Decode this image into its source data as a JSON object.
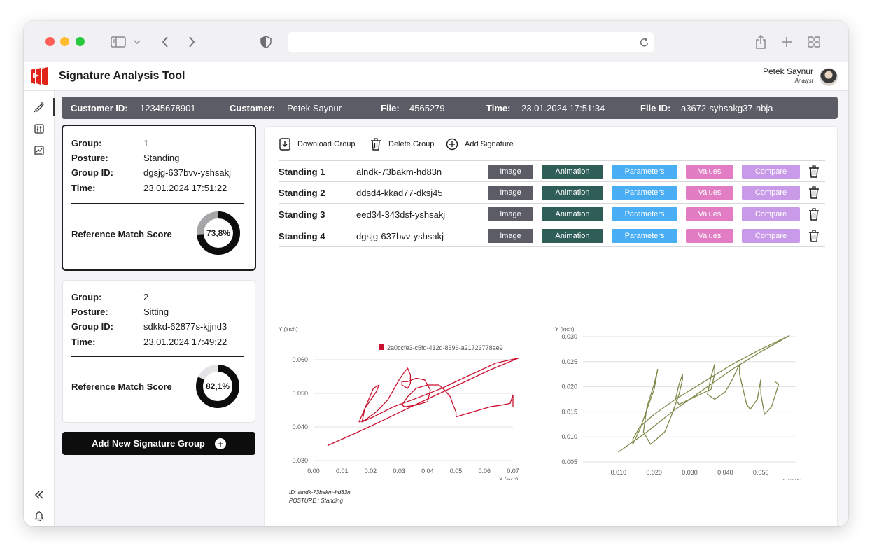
{
  "browser": {
    "url": "",
    "icons": [
      "sidebar-icon",
      "chevron-down-icon",
      "back-icon",
      "forward-icon",
      "shield-icon",
      "reload-icon",
      "share-icon",
      "new-tab-icon",
      "tabs-overview-icon"
    ]
  },
  "app": {
    "title": "Signature Analysis Tool",
    "user_name": "Petek Saynur",
    "user_role": "Analyst",
    "brand_color": "#e2231a"
  },
  "info": {
    "customer_id_label": "Customer ID:",
    "customer_id": "12345678901",
    "customer_label": "Customer:",
    "customer": "Petek Saynur",
    "file_label": "File:",
    "file": "4565279",
    "time_label": "Time:",
    "time": "23.01.2024 17:51:34",
    "file_id_label": "File ID:",
    "file_id": "a3672-syhsakg37-nbja"
  },
  "groups": [
    {
      "group_label": "Group:",
      "group": "1",
      "posture_label": "Posture:",
      "posture": "Standing",
      "group_id_label": "Group ID:",
      "group_id": "dgsjg-637bvv-yshsakj",
      "time_label": "Time:",
      "time": "23.01.2024 17:51:22",
      "score_label": "Reference Match Score",
      "score_text": "73,8%",
      "score": 0.738,
      "selected": true
    },
    {
      "group_label": "Group:",
      "group": "2",
      "posture_label": "Posture:",
      "posture": "Sitting",
      "group_id_label": "Group ID:",
      "group_id": "sdkkd-62877s-kjjnd3",
      "time_label": "Time:",
      "time": "23.01.2024 17:49:22",
      "score_label": "Reference Match Score",
      "score_text": "82,1%",
      "score": 0.821,
      "selected": false
    }
  ],
  "add_group_label": "Add New Signature Group",
  "toolbar": {
    "download": "Download Group",
    "delete": "Delete Group",
    "add": "Add Signature"
  },
  "buttons": {
    "image": "Image",
    "animation": "Animation",
    "parameters": "Parameters",
    "values": "Values",
    "compare": "Compare"
  },
  "button_colors": {
    "image": "#5b5c66",
    "animation": "#2f5d57",
    "parameters": "#4aaef4",
    "values": "#e27dc3",
    "compare": "#c89ae8"
  },
  "signatures": [
    {
      "name": "Standing 1",
      "id": "alndk-73bakm-hd83n"
    },
    {
      "name": "Standing 2",
      "id": "ddsd4-kkad77-dksj45"
    },
    {
      "name": "Standing 3",
      "id": "eed34-343dsf-yshsakj"
    },
    {
      "name": "Standing 4",
      "id": "dgsjg-637bvv-yshsakj"
    }
  ],
  "caption": {
    "id_line": "ID: alndk-73bakm-hd83n",
    "posture_line": "POSTURE : Standing"
  },
  "chart_data": [
    {
      "type": "line",
      "title": "",
      "xlabel": "X (inch)",
      "ylabel": "Y (inch)",
      "xlim": [
        0.0,
        0.07
      ],
      "ylim": [
        0.03,
        0.06
      ],
      "x_ticks": [
        "0.00",
        "0.01",
        "0.02",
        "0.03",
        "0.04",
        "0.05",
        "0.06",
        "0.07"
      ],
      "y_ticks": [
        "0.030",
        "0.040",
        "0.050",
        "0.060"
      ],
      "grid": "horizontal",
      "legend": "top-right",
      "series": [
        {
          "name": "2a0ccfe3-c5fd-412d-8596-a21723778ae9",
          "color": "#c8102e",
          "x": [
            0.005,
            0.013,
            0.022,
            0.033,
            0.043,
            0.052,
            0.062,
            0.072,
            0.064,
            0.055,
            0.045,
            0.036,
            0.028,
            0.021,
            0.017,
            0.018,
            0.022,
            0.023,
            0.021,
            0.019,
            0.017,
            0.016,
            0.018,
            0.022,
            0.026,
            0.028,
            0.03,
            0.032,
            0.033,
            0.034,
            0.034,
            0.033,
            0.031,
            0.031,
            0.033,
            0.036,
            0.039,
            0.041,
            0.04,
            0.036,
            0.032,
            0.031,
            0.033,
            0.036,
            0.04,
            0.044,
            0.046,
            0.048,
            0.049,
            0.05,
            0.05,
            0.05,
            0.054,
            0.058,
            0.062,
            0.066,
            0.069,
            0.07,
            0.07
          ],
          "y": [
            0.0345,
            0.0375,
            0.041,
            0.0455,
            0.0495,
            0.053,
            0.057,
            0.0605,
            0.059,
            0.0555,
            0.0515,
            0.0485,
            0.046,
            0.043,
            0.0415,
            0.0455,
            0.0505,
            0.0525,
            0.0515,
            0.0475,
            0.0435,
            0.0415,
            0.042,
            0.0445,
            0.048,
            0.051,
            0.054,
            0.0565,
            0.0575,
            0.0555,
            0.053,
            0.0515,
            0.0525,
            0.0535,
            0.0535,
            0.0545,
            0.054,
            0.051,
            0.0475,
            0.0465,
            0.046,
            0.0465,
            0.049,
            0.0515,
            0.0525,
            0.0525,
            0.051,
            0.049,
            0.0465,
            0.0445,
            0.043,
            0.043,
            0.044,
            0.045,
            0.046,
            0.0465,
            0.047,
            0.0495,
            0.046
          ]
        }
      ]
    },
    {
      "type": "line",
      "title": "",
      "xlabel": "X (inch)",
      "ylabel": "Y (inch)",
      "xlim": [
        0.0,
        0.06
      ],
      "ylim": [
        0.005,
        0.03
      ],
      "x_ticks": [
        "0.010",
        "0.020",
        "0.030",
        "0.040",
        "0.050"
      ],
      "y_ticks": [
        "0.005",
        "0.010",
        "0.015",
        "0.020",
        "0.025",
        "0.030"
      ],
      "grid": "horizontal",
      "legend": "none",
      "series": [
        {
          "name": "",
          "color": "#7d8b4a",
          "x": [
            0.01,
            0.018,
            0.026,
            0.034,
            0.042,
            0.05,
            0.058,
            0.05,
            0.042,
            0.034,
            0.026,
            0.02,
            0.016,
            0.014,
            0.014,
            0.016,
            0.018,
            0.02,
            0.021,
            0.02,
            0.018,
            0.017,
            0.019,
            0.023,
            0.025,
            0.027,
            0.028,
            0.028,
            0.027,
            0.026,
            0.027,
            0.03,
            0.033,
            0.036,
            0.037,
            0.037,
            0.036,
            0.035,
            0.037,
            0.04,
            0.042,
            0.044,
            0.044,
            0.045,
            0.046,
            0.047,
            0.049,
            0.05,
            0.05,
            0.051,
            0.053,
            0.055,
            0.054
          ],
          "y": [
            0.007,
            0.011,
            0.0155,
            0.0195,
            0.0235,
            0.027,
            0.0302,
            0.0275,
            0.0245,
            0.021,
            0.0175,
            0.0145,
            0.012,
            0.0095,
            0.0085,
            0.0115,
            0.0155,
            0.0195,
            0.0235,
            0.0205,
            0.016,
            0.011,
            0.0085,
            0.011,
            0.0145,
            0.0185,
            0.0215,
            0.0225,
            0.0205,
            0.0175,
            0.0165,
            0.0175,
            0.0185,
            0.0195,
            0.0225,
            0.0245,
            0.022,
            0.0185,
            0.0175,
            0.019,
            0.0215,
            0.0245,
            0.0225,
            0.0195,
            0.0165,
            0.0155,
            0.0175,
            0.0215,
            0.0185,
            0.0145,
            0.016,
            0.0205,
            0.021
          ]
        }
      ]
    }
  ]
}
